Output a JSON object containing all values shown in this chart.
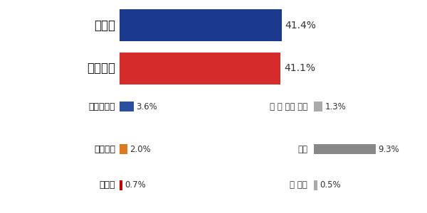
{
  "background_color": "#ffffff",
  "left_bars": [
    {
      "label": "민주당",
      "value": 41.4,
      "color": "#1b3a8f",
      "row": 4
    },
    {
      "label": "국민의힘",
      "value": 41.1,
      "color": "#d62b2b",
      "row": 3
    },
    {
      "label": "조국혁신당",
      "value": 3.6,
      "color": "#2b4fa0",
      "row": 2
    },
    {
      "label": "개혁신당",
      "value": 2.0,
      "color": "#e07820",
      "row": 1
    },
    {
      "label": "진보당",
      "value": 0.7,
      "color": "#cc0000",
      "row": 0
    }
  ],
  "right_bars": [
    {
      "label": "그 외 다른 정당",
      "value": 1.3,
      "color": "#aaaaaa",
      "row": 2
    },
    {
      "label": "없음",
      "value": 9.3,
      "color": "#888888",
      "row": 1
    },
    {
      "label": "잘 모름",
      "value": 0.5,
      "color": "#aaaaaa",
      "row": 0
    }
  ],
  "large_bar_height": 1.5,
  "small_bar_height": 0.45,
  "label_fontsize": 10,
  "value_fontsize": 9,
  "small_label_fontsize": 8.5,
  "small_value_fontsize": 8.5
}
